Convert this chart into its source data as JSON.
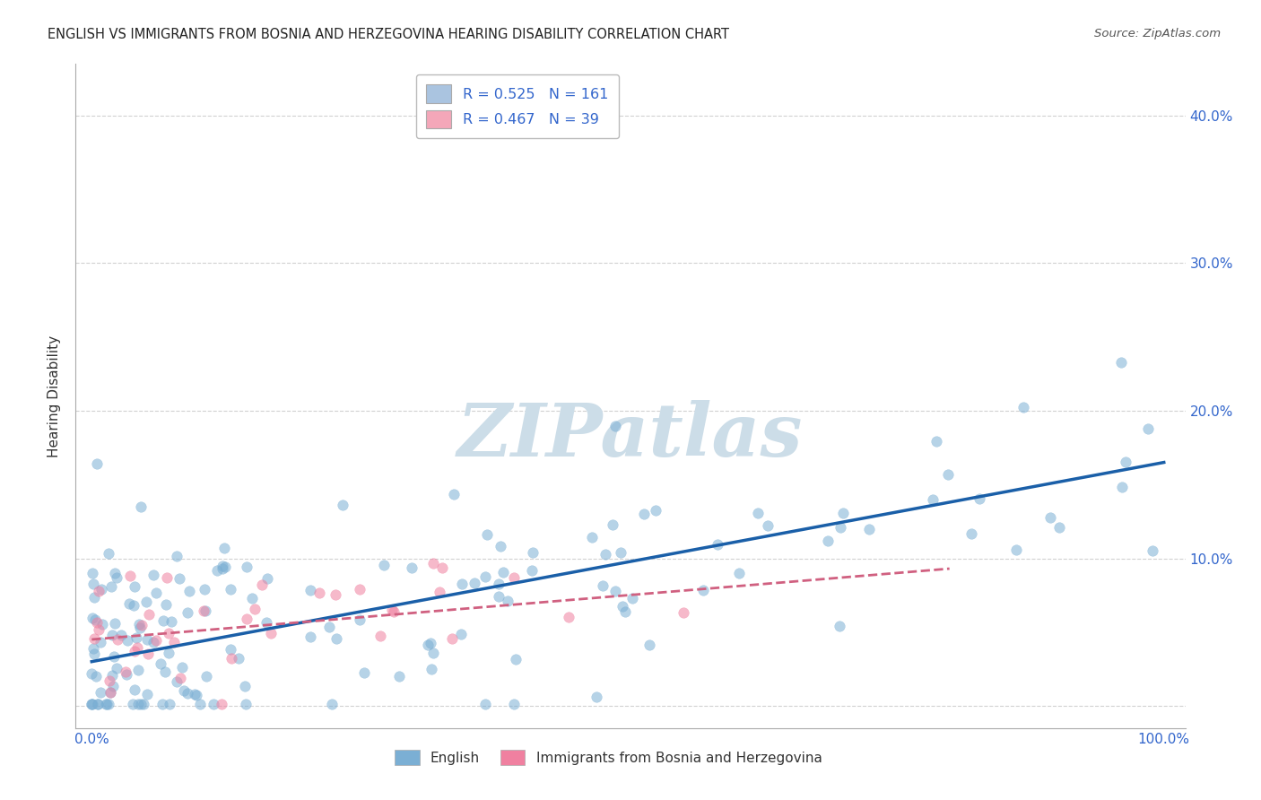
{
  "title": "ENGLISH VS IMMIGRANTS FROM BOSNIA AND HERZEGOVINA HEARING DISABILITY CORRELATION CHART",
  "source": "Source: ZipAtlas.com",
  "ylabel_label": "Hearing Disability",
  "yticks_values": [
    0.0,
    0.1,
    0.2,
    0.3,
    0.4
  ],
  "xlim": [
    -0.015,
    1.02
  ],
  "ylim": [
    -0.015,
    0.435
  ],
  "legend_entries": [
    {
      "label": "R = 0.525   N = 161",
      "color": "#aac4e0"
    },
    {
      "label": "R = 0.467   N = 39",
      "color": "#f4a7b9"
    }
  ],
  "english_color": "#7bafd4",
  "immigrants_color": "#f080a0",
  "english_line_color": "#1a5fa8",
  "immigrants_line_color": "#d06080",
  "watermark": "ZIPatlas",
  "watermark_color": "#ccdde8",
  "background_color": "#ffffff",
  "grid_color": "#cccccc",
  "english_R": 0.525,
  "english_N": 161,
  "immigrants_R": 0.467,
  "immigrants_N": 39,
  "english_intercept": 0.03,
  "english_slope": 0.135,
  "immigrants_intercept": 0.045,
  "immigrants_slope": 0.06,
  "tick_color": "#3366cc",
  "title_color": "#222222",
  "source_color": "#555555"
}
